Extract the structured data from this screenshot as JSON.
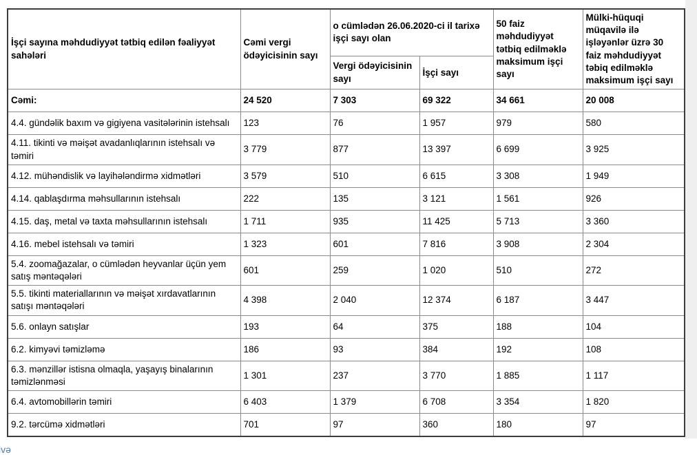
{
  "colors": {
    "outer_border": "#3c3c3c",
    "inner_border": "#8a8a8a",
    "link": "#4f7ca9",
    "gutter": "#efefef"
  },
  "table": {
    "header": {
      "activity": "İşçi sayına məhdudiyyət tətbiq edilən fəaliyyət sahələri",
      "total_taxpayers": "Cəmi vergi ödəyicisinin sayı",
      "as_of_group": "o cümlədən 26.06.2020-ci il tarixə işçi sayı olan",
      "sub_taxpayers": "Vergi ödəyicisinin sayı",
      "sub_workers": "İşçi sayı",
      "max50": "50 faiz məhdudiyyət tətbiq edilməklə maksimum işçi sayı",
      "max30": "Mülki-hüquqi müqavilə ilə işləyənlər üzrə 30 faiz məhdudiyyət təbiq edilməklə maksimum işçi sayı"
    },
    "total_row": {
      "label": "Cəmi:",
      "values": [
        "24 520",
        "7 303",
        "69 322",
        "34 661",
        "20 008"
      ]
    },
    "rows": [
      {
        "label": "4.4. gündəlik baxım və gigiyena vasitələrinin istehsalı",
        "values": [
          "123",
          "76",
          "1 957",
          "979",
          "580"
        ]
      },
      {
        "label": "4.11. tikinti və məişət avadanlıqlarının istehsalı və təmiri",
        "values": [
          "3 779",
          "877",
          "13 397",
          "6 699",
          "3 925"
        ]
      },
      {
        "label": "4.12. mühəndislik və layihələndirmə xidmətləri",
        "values": [
          "3 579",
          "510",
          "6 615",
          "3 308",
          "1 949"
        ]
      },
      {
        "label": "4.14. qablaşdırma məhsullarının istehsalı",
        "values": [
          "222",
          "135",
          "3 121",
          "1 561",
          "926"
        ]
      },
      {
        "label": "4.15. daş, metal və taxta məhsullarının istehsalı",
        "values": [
          "1 711",
          "935",
          "11 425",
          "5 713",
          "3 360"
        ]
      },
      {
        "label": "4.16. mebel istehsalı və təmiri",
        "values": [
          "1 323",
          "601",
          "7 816",
          "3 908",
          "2 304"
        ]
      },
      {
        "label": "5.4. zoomağazalar, o cümlədən heyvanlar üçün yem satış məntəqələri",
        "values": [
          "601",
          "259",
          "1 020",
          "510",
          "272"
        ]
      },
      {
        "label": "5.5. tikinti materiallarının və məişət xırdavatlarının satışı məntəqələri",
        "values": [
          "4 398",
          "2 040",
          "12 374",
          "6 187",
          "3 447"
        ]
      },
      {
        "label": "5.6. onlayn satışlar",
        "values": [
          "193",
          "64",
          "375",
          "188",
          "104"
        ]
      },
      {
        "label": "6.2. kimyəvi təmizləmə",
        "values": [
          "186",
          "93",
          "384",
          "192",
          "108"
        ]
      },
      {
        "label": "6.3. mənzillər istisna olmaqla, yaşayış binalarının təmizlənməsi",
        "values": [
          "1 301",
          "237",
          "3 770",
          "1 885",
          "1 117"
        ]
      },
      {
        "label": "6.4. avtomobillərin təmiri",
        "values": [
          "6 403",
          "1 379",
          "6 708",
          "3 354",
          "1 820"
        ]
      },
      {
        "label": "9.2. tərcümə xidmətləri",
        "values": [
          "701",
          "97",
          "360",
          "180",
          "97"
        ]
      }
    ]
  },
  "footer": {
    "partial_link": "ivə"
  }
}
